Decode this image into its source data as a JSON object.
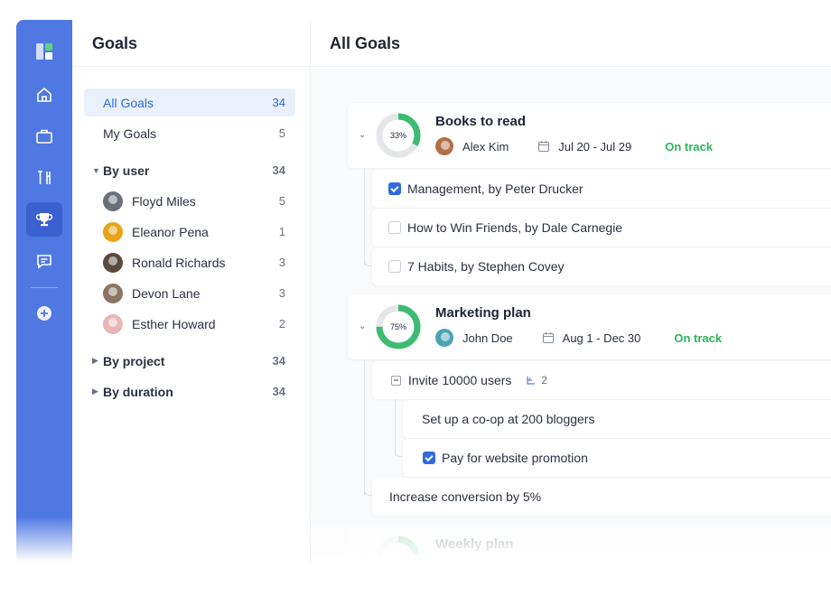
{
  "rail": {
    "items": [
      {
        "icon": "logo-icon"
      },
      {
        "icon": "home-icon"
      },
      {
        "icon": "briefcase-icon"
      },
      {
        "icon": "tools-icon"
      },
      {
        "icon": "trophy-icon",
        "active": true
      },
      {
        "icon": "chat-icon"
      },
      {
        "icon": "plus-circle-icon"
      }
    ],
    "colors": {
      "background": "#4f78e3",
      "active": "#3a61cf"
    }
  },
  "panel": {
    "title": "Goals",
    "all_goals": {
      "label": "All Goals",
      "count": "34"
    },
    "my_goals": {
      "label": "My Goals",
      "count": "5"
    },
    "by_user": {
      "label": "By user",
      "count": "34"
    },
    "users": [
      {
        "name": "Floyd Miles",
        "count": "5",
        "avatar_color": "#6b6f7a"
      },
      {
        "name": "Eleanor Pena",
        "count": "1",
        "avatar_color": "#e8a317"
      },
      {
        "name": "Ronald Richards",
        "count": "3",
        "avatar_color": "#5a4a3c"
      },
      {
        "name": "Devon Lane",
        "count": "3",
        "avatar_color": "#8a7564"
      },
      {
        "name": "Esther Howard",
        "count": "2",
        "avatar_color": "#e7b7b5"
      }
    ],
    "by_project": {
      "label": "By project",
      "count": "34"
    },
    "by_duration": {
      "label": "By duration",
      "count": "34"
    }
  },
  "main": {
    "title": "All Goals",
    "goals": [
      {
        "title": "Books to read",
        "progress_label": "33%",
        "progress": 0.33,
        "owner": "Alex Kim",
        "owner_avatar_color": "#b0704a",
        "dates": "Jul 20 - Jul 29",
        "status": "On track",
        "tasks": [
          {
            "label": "Management, by Peter Drucker",
            "checked": true
          },
          {
            "label": "How to Win Friends, by Dale Carnegie",
            "checked": false
          },
          {
            "label": "7 Habits,  by Stephen Covey",
            "checked": false
          }
        ]
      },
      {
        "title": "Marketing plan",
        "progress_label": "75%",
        "progress": 0.75,
        "owner": "John Doe",
        "owner_avatar_color": "#4aa3b5",
        "dates": "Aug 1 - Dec 30",
        "status": "On track",
        "tasks": [
          {
            "label": "Invite 10000 users",
            "subtask_count": "2"
          },
          {
            "label": "Set up a co-op at 200 bloggers"
          },
          {
            "label": "Pay for website promotion",
            "checked": true
          },
          {
            "label": "Increase conversion by 5%"
          }
        ]
      },
      {
        "title": "Weekly plan"
      }
    ],
    "colors": {
      "accent": "#2f6ae0",
      "status_green": "#2fb35a",
      "progress_green": "#3dbb73",
      "progress_track": "#e4e6ea"
    }
  }
}
